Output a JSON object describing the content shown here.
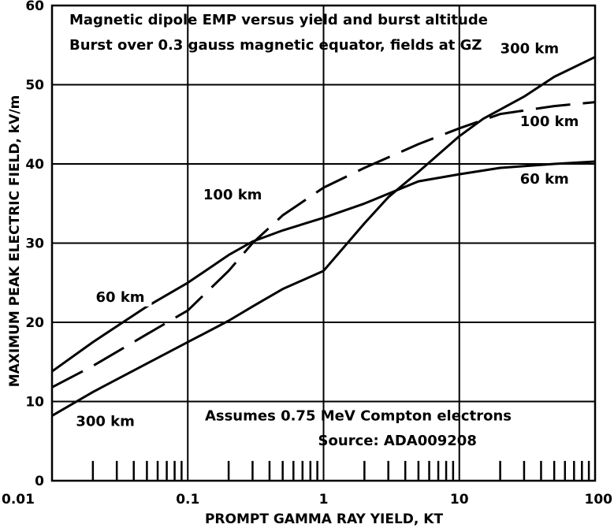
{
  "chart_data": {
    "type": "line",
    "title": "Magnetic dipole EMP versus yield and burst altitude",
    "subtitle": "Burst over 0.3 gauss magnetic equator, fields at GZ",
    "xlabel": "PROMPT GAMMA RAY YIELD, KT",
    "ylabel": "MAXIMUM PEAK ELECTRIC FIELD, kV/m",
    "xscale": "log",
    "xlim": [
      0.01,
      100
    ],
    "ylim": [
      0,
      60
    ],
    "grid": true,
    "x_ticks": [
      {
        "value": 0.01,
        "label": "0.01"
      },
      {
        "value": 0.1,
        "label": "0.1"
      },
      {
        "value": 1,
        "label": "1"
      },
      {
        "value": 10,
        "label": "10"
      },
      {
        "value": 100,
        "label": "100"
      }
    ],
    "y_ticks": [
      {
        "value": 0,
        "label": "0"
      },
      {
        "value": 10,
        "label": "10"
      },
      {
        "value": 20,
        "label": "20"
      },
      {
        "value": 30,
        "label": "30"
      },
      {
        "value": 40,
        "label": "40"
      },
      {
        "value": 50,
        "label": "50"
      },
      {
        "value": 60,
        "label": "60"
      }
    ],
    "series": [
      {
        "name": "60 km",
        "style": "solid",
        "points": [
          [
            0.01,
            13.8
          ],
          [
            0.02,
            17.5
          ],
          [
            0.05,
            22
          ],
          [
            0.1,
            25
          ],
          [
            0.2,
            28.5
          ],
          [
            0.3,
            30.2
          ],
          [
            0.5,
            31.6
          ],
          [
            1,
            33.2
          ],
          [
            2,
            35
          ],
          [
            5,
            37.8
          ],
          [
            10,
            38.7
          ],
          [
            20,
            39.5
          ],
          [
            50,
            40
          ],
          [
            100,
            40.3
          ]
        ]
      },
      {
        "name": "100 km",
        "style": "dashed",
        "points": [
          [
            0.01,
            11.8
          ],
          [
            0.02,
            14.5
          ],
          [
            0.05,
            18.5
          ],
          [
            0.1,
            21.5
          ],
          [
            0.2,
            26.5
          ],
          [
            0.3,
            30
          ],
          [
            0.5,
            33.5
          ],
          [
            1,
            37
          ],
          [
            2,
            39.5
          ],
          [
            5,
            42.5
          ],
          [
            10,
            44.5
          ],
          [
            20,
            46.3
          ],
          [
            50,
            47.3
          ],
          [
            100,
            47.8
          ]
        ]
      },
      {
        "name": "300 km",
        "style": "solid",
        "points": [
          [
            0.01,
            8.2
          ],
          [
            0.02,
            11.2
          ],
          [
            0.05,
            14.8
          ],
          [
            0.1,
            17.5
          ],
          [
            0.2,
            20.2
          ],
          [
            0.3,
            22
          ],
          [
            0.5,
            24.2
          ],
          [
            1,
            26.5
          ],
          [
            2,
            32.5
          ],
          [
            3,
            35.8
          ],
          [
            5,
            39
          ],
          [
            10,
            43.5
          ],
          [
            15,
            45.7
          ],
          [
            30,
            48.5
          ],
          [
            50,
            51
          ],
          [
            100,
            53.5
          ]
        ]
      }
    ],
    "curve_labels": [
      {
        "text": "300 km",
        "x": 20,
        "y": 54,
        "anchor": "start"
      },
      {
        "text": "100 km",
        "x": 28,
        "y": 44.8,
        "anchor": "start"
      },
      {
        "text": "60 km",
        "x": 28,
        "y": 37.5,
        "anchor": "start"
      },
      {
        "text": "100 km",
        "x": 0.13,
        "y": 35.5,
        "anchor": "start"
      },
      {
        "text": "60 km",
        "x": 0.021,
        "y": 22.6,
        "anchor": "start"
      },
      {
        "text": "300 km",
        "x": 0.015,
        "y": 6.9,
        "anchor": "start"
      }
    ],
    "annotations": [
      {
        "text": "Assumes 0.75 MeV Compton electrons",
        "x": 1.8,
        "y": 7.6
      },
      {
        "text": "Source: ADA009208",
        "x": 3.5,
        "y": 4.5
      }
    ],
    "rug_x": [
      0.02,
      0.03,
      0.04,
      0.05,
      0.06,
      0.07,
      0.08,
      0.09,
      0.2,
      0.3,
      0.4,
      0.5,
      0.6,
      0.7,
      0.8,
      0.9,
      2,
      3,
      4,
      5,
      6,
      7,
      8,
      9,
      20,
      30,
      40,
      50,
      60,
      70,
      80,
      90
    ],
    "rug_height": 2.5
  }
}
